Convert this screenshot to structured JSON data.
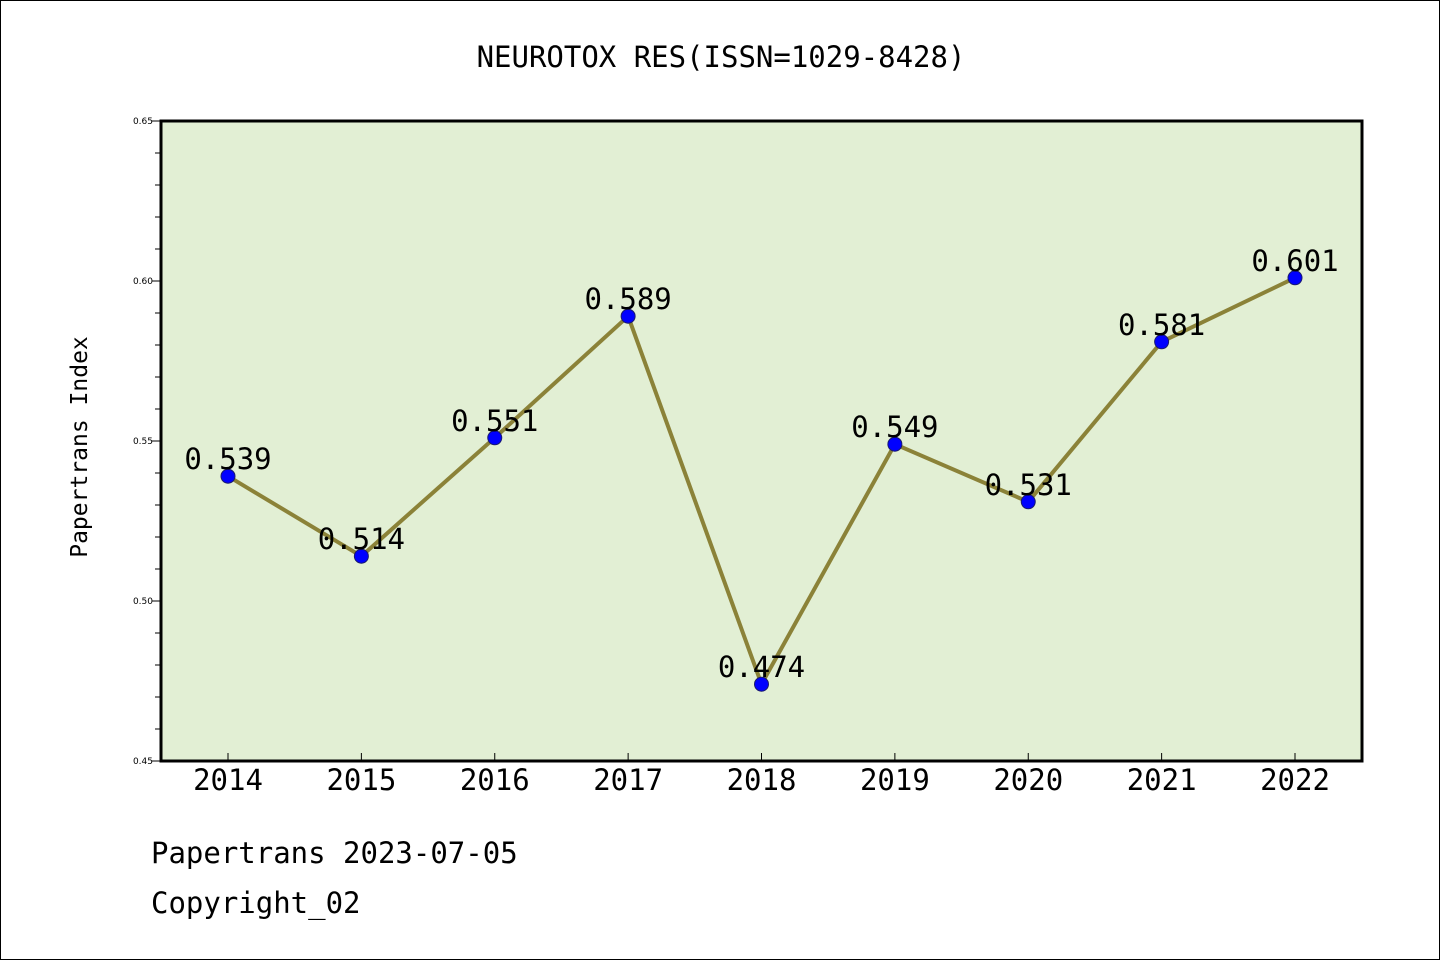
{
  "chart_data": {
    "type": "line",
    "title": "NEUROTOX RES(ISSN=1029-8428)",
    "xlabel": "",
    "ylabel": "Papertrans Index",
    "categories": [
      "2014",
      "2015",
      "2016",
      "2017",
      "2018",
      "2019",
      "2020",
      "2021",
      "2022"
    ],
    "series": [
      {
        "values": [
          0.539,
          0.514,
          0.551,
          0.589,
          0.474,
          0.549,
          0.531,
          0.581,
          0.601
        ]
      }
    ],
    "data_labels": [
      "0.539",
      "0.514",
      "0.551",
      "0.589",
      "0.474",
      "0.549",
      "0.531",
      "0.581",
      "0.601"
    ],
    "ylim": [
      0.45,
      0.65
    ],
    "yticks": [
      "0.45",
      "0.50",
      "0.55",
      "0.60",
      "0.65"
    ],
    "grid": false,
    "legend": "none",
    "colors": {
      "plot_background": "#e2efd4",
      "line": "#8b8238",
      "marker": "#0000ff",
      "axis": "#000000"
    }
  },
  "footer": {
    "date_text": "Papertrans 2023-07-05",
    "copyright_text": "Copyright_02"
  }
}
